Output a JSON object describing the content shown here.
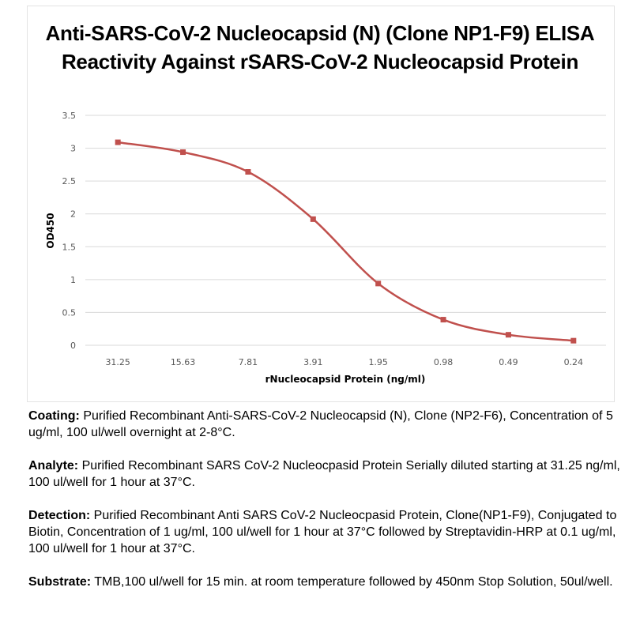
{
  "chart_data": {
    "type": "line",
    "title_lines": [
      "Anti-SARS-CoV-2 Nucleocapsid (N) (Clone NP1-F9) ELISA",
      "Reactivity Against rSARS-CoV-2 Nucleocapsid Protein"
    ],
    "xlabel": "rNucleocapsid Protein (ng/ml)",
    "ylabel": "OD450",
    "categories": [
      "31.25",
      "15.63",
      "7.81",
      "3.91",
      "1.95",
      "0.98",
      "0.49",
      "0.24"
    ],
    "yticks": [
      "0",
      "0.5",
      "1",
      "1.5",
      "2",
      "2.5",
      "3",
      "3.5"
    ],
    "ylim": [
      0,
      3.5
    ],
    "grid": true,
    "legend": "none",
    "series": [
      {
        "values": [
          3.09,
          2.94,
          2.64,
          1.92,
          0.94,
          0.39,
          0.16,
          0.07
        ],
        "color": "#c0504d"
      }
    ]
  },
  "notes": [
    {
      "label": "Coating:",
      "text": " Purified Recombinant Anti-SARS-CoV-2 Nucleocapsid (N), Clone (NP2-F6), Concentration of 5 ug/ml, 100 ul/well overnight at 2-8°C."
    },
    {
      "label": "Analyte:",
      "text": " Purified Recombinant SARS CoV-2 Nucleocpasid Protein Serially diluted starting at 31.25 ng/ml, 100 ul/well for 1 hour at 37°C."
    },
    {
      "label": "Detection:",
      "text": " Purified Recombinant Anti SARS CoV-2 Nucleocpasid Protein, Clone(NP1-F9), Conjugated to Biotin, Concentration of 1 ug/ml, 100 ul/well for 1 hour at 37°C followed by Streptavidin-HRP at 0.1 ug/ml, 100 ul/well for 1 hour at 37°C."
    },
    {
      "label": "Substrate:",
      "text": " TMB,100 ul/well for 15 min. at room temperature followed by 450nm Stop Solution, 50ul/well."
    }
  ]
}
